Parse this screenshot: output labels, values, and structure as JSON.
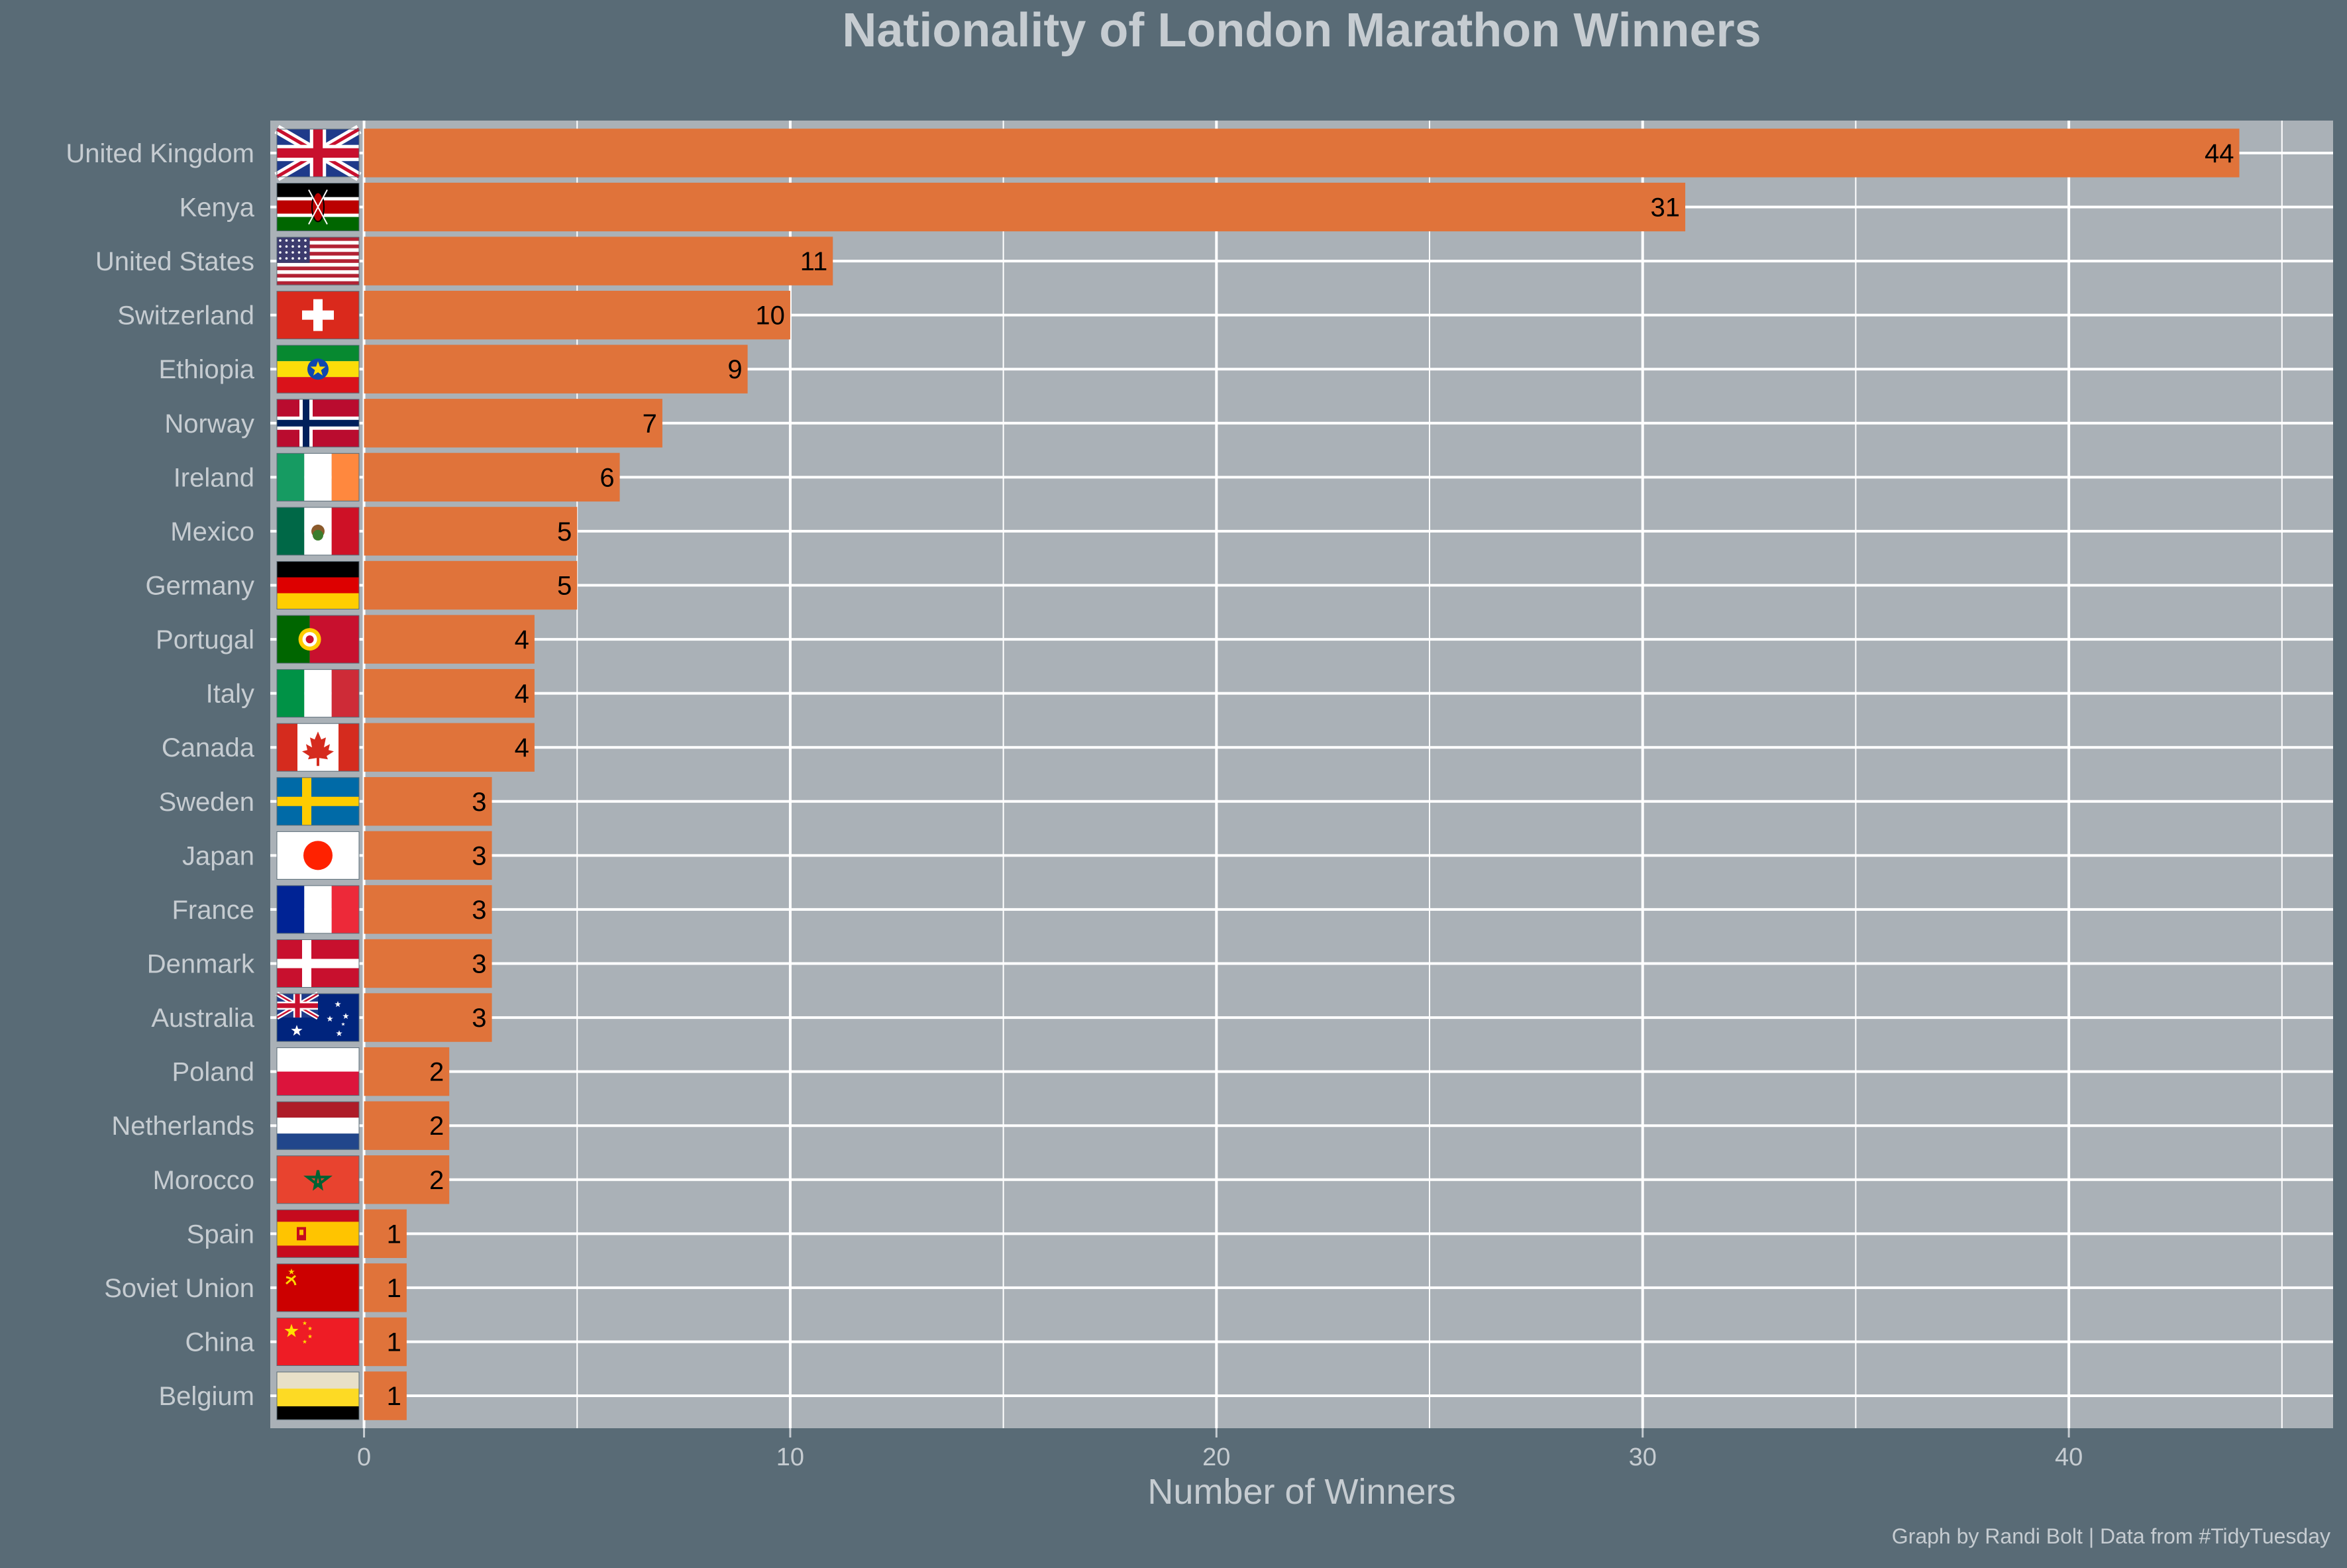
{
  "chart_data": {
    "type": "bar",
    "orientation": "horizontal",
    "title": "Nationality of London Marathon Winners",
    "xlabel": "Number of Winners",
    "ylabel": "",
    "caption": "Graph by Randi Bolt | Data from #TidyTuesday",
    "xlim": [
      -2.2,
      46.2
    ],
    "x_ticks": [
      0,
      10,
      20,
      30,
      40
    ],
    "grid": true,
    "categories": [
      "United Kingdom",
      "Kenya",
      "United States",
      "Switzerland",
      "Ethiopia",
      "Norway",
      "Ireland",
      "Mexico",
      "Germany",
      "Portugal",
      "Italy",
      "Canada",
      "Sweden",
      "Japan",
      "France",
      "Denmark",
      "Australia",
      "Poland",
      "Netherlands",
      "Morocco",
      "Spain",
      "Soviet Union",
      "China",
      "Belgium"
    ],
    "values": [
      44,
      31,
      11,
      10,
      9,
      7,
      6,
      5,
      5,
      4,
      4,
      4,
      3,
      3,
      3,
      3,
      3,
      2,
      2,
      2,
      1,
      1,
      1,
      1
    ],
    "flags": [
      "gb-flag-icon",
      "ke-flag-icon",
      "us-flag-icon",
      "ch-flag-icon",
      "et-flag-icon",
      "no-flag-icon",
      "ie-flag-icon",
      "mx-flag-icon",
      "de-flag-icon",
      "pt-flag-icon",
      "it-flag-icon",
      "ca-flag-icon",
      "se-flag-icon",
      "jp-flag-icon",
      "fr-flag-icon",
      "dk-flag-icon",
      "au-flag-icon",
      "pl-flag-icon",
      "nl-flag-icon",
      "ma-flag-icon",
      "es-flag-icon",
      "su-flag-icon",
      "cn-flag-icon",
      "be-flag-icon"
    ],
    "colors": {
      "background": "#596b76",
      "panel": "#aab1b7",
      "grid": "#ffffff",
      "bar": "#e0733a",
      "text": "#c6ccd1",
      "value_label": "#000000"
    }
  }
}
